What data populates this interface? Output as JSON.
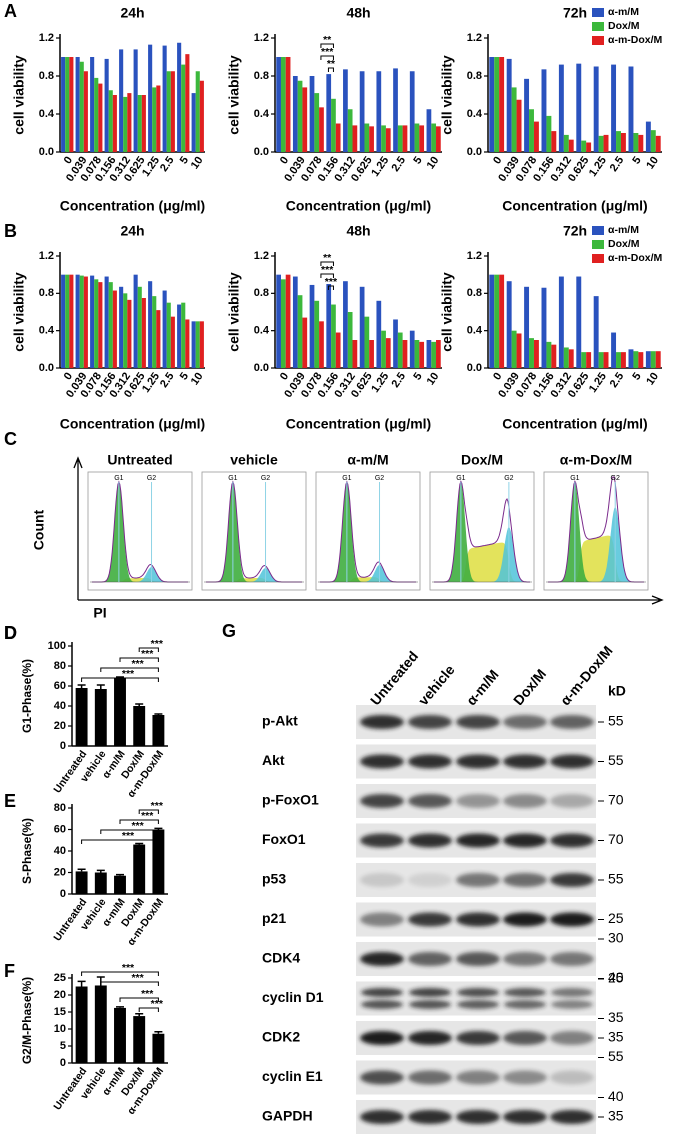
{
  "chart_data": [
    {
      "type": "bar",
      "panel": "A",
      "title": "24h",
      "ylabel": "cell viability",
      "xlabel": "Concentration (μg/ml)",
      "categories": [
        "0",
        "0.039",
        "0.078",
        "0.156",
        "0.312",
        "0.625",
        "1.25",
        "2.5",
        "5",
        "10"
      ],
      "series": [
        {
          "color": "#2a52be",
          "values": [
            1.0,
            1.0,
            1.0,
            0.98,
            1.08,
            1.08,
            1.13,
            1.12,
            1.15,
            0.62
          ]
        },
        {
          "color": "#3cb83c",
          "values": [
            1.0,
            0.95,
            0.78,
            0.65,
            0.58,
            0.6,
            0.68,
            0.85,
            0.92,
            0.85
          ]
        },
        {
          "color": "#e02020",
          "values": [
            1.0,
            0.85,
            0.72,
            0.6,
            0.62,
            0.6,
            0.7,
            0.85,
            1.03,
            0.75
          ]
        }
      ],
      "ylim": [
        0,
        1.2
      ],
      "yticks": [
        {
          "value": 0,
          "label": "0.0"
        },
        0.4,
        0.8,
        1.2
      ]
    },
    {
      "type": "bar",
      "title": "48h",
      "ylabel": "cell viability",
      "xlabel": "Concentration (μg/ml)",
      "categories": [
        "0",
        "0.039",
        "0.078",
        "0.156",
        "0.312",
        "0.625",
        "1.25",
        "2.5",
        "5",
        "10"
      ],
      "series": [
        {
          "color": "#2a52be",
          "values": [
            1.0,
            0.8,
            0.8,
            0.82,
            0.87,
            0.85,
            0.85,
            0.88,
            0.85,
            0.45
          ]
        },
        {
          "color": "#3cb83c",
          "values": [
            1.0,
            0.75,
            0.62,
            0.56,
            0.45,
            0.3,
            0.28,
            0.28,
            0.3,
            0.3
          ]
        },
        {
          "color": "#e02020",
          "values": [
            1.0,
            0.68,
            0.47,
            0.3,
            0.28,
            0.27,
            0.25,
            0.28,
            0.28,
            0.27
          ]
        }
      ],
      "ylim": [
        0,
        1.2
      ],
      "yticks": [
        {
          "value": 0,
          "label": "0.0"
        },
        0.4,
        0.8,
        1.2
      ],
      "annotations": [
        "**",
        "***",
        "**"
      ]
    },
    {
      "type": "bar",
      "title": "72h",
      "ylabel": "cell viability",
      "xlabel": "Concentration (μg/ml)",
      "categories": [
        "0",
        "0.039",
        "0.078",
        "0.156",
        "0.312",
        "0.625",
        "1.25",
        "2.5",
        "5",
        "10"
      ],
      "series": [
        {
          "name": "α-m/M",
          "color": "#2a52be",
          "values": [
            1.0,
            0.98,
            0.77,
            0.87,
            0.92,
            0.93,
            0.9,
            0.92,
            0.9,
            0.32
          ]
        },
        {
          "name": "Dox/M",
          "color": "#3cb83c",
          "values": [
            1.0,
            0.68,
            0.45,
            0.38,
            0.18,
            0.12,
            0.17,
            0.22,
            0.2,
            0.23
          ]
        },
        {
          "name": "α-m-Dox/M",
          "color": "#e02020",
          "values": [
            1.0,
            0.55,
            0.32,
            0.22,
            0.13,
            0.1,
            0.18,
            0.2,
            0.18,
            0.17
          ]
        }
      ],
      "ylim": [
        0,
        1.2
      ],
      "yticks": [
        {
          "value": 0,
          "label": "0.0"
        },
        0.4,
        0.8,
        1.2
      ],
      "legend": "top-right"
    },
    {
      "type": "bar",
      "panel": "B",
      "title": "24h",
      "ylabel": "cell viability",
      "xlabel": "Concentration (μg/ml)",
      "categories": [
        "0",
        "0.039",
        "0.078",
        "0.156",
        "0.312",
        "0.625",
        "1.25",
        "2.5",
        "5",
        "10"
      ],
      "series": [
        {
          "color": "#2a52be",
          "values": [
            1.0,
            1.0,
            0.99,
            0.98,
            0.87,
            1.0,
            0.93,
            0.83,
            0.68,
            0.5
          ]
        },
        {
          "color": "#3cb83c",
          "values": [
            1.0,
            0.99,
            0.95,
            0.92,
            0.8,
            0.87,
            0.77,
            0.7,
            0.7,
            0.5
          ]
        },
        {
          "color": "#e02020",
          "values": [
            1.0,
            0.98,
            0.92,
            0.83,
            0.73,
            0.75,
            0.62,
            0.55,
            0.52,
            0.5
          ]
        }
      ],
      "ylim": [
        0,
        1.2
      ],
      "yticks": [
        {
          "value": 0,
          "label": "0.0"
        },
        0.4,
        0.8,
        1.2
      ]
    },
    {
      "type": "bar",
      "title": "48h",
      "ylabel": "cell viability",
      "xlabel": "Concentration (μg/ml)",
      "categories": [
        "0",
        "0.039",
        "0.078",
        "0.156",
        "0.312",
        "0.625",
        "1.25",
        "2.5",
        "5",
        "10"
      ],
      "series": [
        {
          "color": "#2a52be",
          "values": [
            1.0,
            0.98,
            0.89,
            0.9,
            0.93,
            0.87,
            0.72,
            0.52,
            0.4,
            0.3
          ]
        },
        {
          "color": "#3cb83c",
          "values": [
            0.95,
            0.78,
            0.72,
            0.68,
            0.6,
            0.55,
            0.4,
            0.38,
            0.3,
            0.28
          ]
        },
        {
          "color": "#e02020",
          "values": [
            1.0,
            0.54,
            0.5,
            0.38,
            0.3,
            0.3,
            0.32,
            0.3,
            0.28,
            0.3
          ]
        }
      ],
      "ylim": [
        0,
        1.2
      ],
      "yticks": [
        {
          "value": 0,
          "label": "0.0"
        },
        0.4,
        0.8,
        1.2
      ],
      "annotations": [
        "**",
        "***",
        "***"
      ]
    },
    {
      "type": "bar",
      "title": "72h",
      "ylabel": "cell viability",
      "xlabel": "Concentration (μg/ml)",
      "categories": [
        "0",
        "0.039",
        "0.078",
        "0.156",
        "0.312",
        "0.625",
        "1.25",
        "2.5",
        "5",
        "10"
      ],
      "series": [
        {
          "name": "α-m/M",
          "color": "#2a52be",
          "values": [
            1.0,
            0.93,
            0.87,
            0.86,
            0.98,
            0.98,
            0.77,
            0.38,
            0.2,
            0.18
          ]
        },
        {
          "name": "Dox/M",
          "color": "#3cb83c",
          "values": [
            1.0,
            0.4,
            0.32,
            0.28,
            0.22,
            0.17,
            0.17,
            0.17,
            0.18,
            0.18
          ]
        },
        {
          "name": "α-m-Dox/M",
          "color": "#e02020",
          "values": [
            1.0,
            0.37,
            0.3,
            0.25,
            0.2,
            0.17,
            0.17,
            0.17,
            0.17,
            0.18
          ]
        }
      ],
      "ylim": [
        0,
        1.2
      ],
      "yticks": [
        {
          "value": 0,
          "label": "0.0"
        },
        0.4,
        0.8,
        1.2
      ],
      "legend": "top-right"
    },
    {
      "type": "bar",
      "panel": "D",
      "ylabel": "G1-Phase(%)",
      "categories": [
        "Untreated",
        "vehicle",
        "α-m/M",
        "Dox/M",
        "α-m-Dox/M"
      ],
      "series": [
        {
          "color": "#000000",
          "values": [
            58,
            57,
            68,
            40,
            31
          ],
          "errors": [
            3,
            4,
            1,
            2,
            1
          ]
        }
      ],
      "ylim": [
        0,
        100
      ],
      "yticks": [
        0,
        20,
        40,
        60,
        80,
        100
      ],
      "annotations": [
        "***",
        "***",
        "***",
        "***"
      ]
    },
    {
      "type": "bar",
      "panel": "E",
      "ylabel": "S-Phase(%)",
      "categories": [
        "Untreated",
        "vehicle",
        "α-m/M",
        "Dox/M",
        "α-m-Dox/M"
      ],
      "series": [
        {
          "color": "#000000",
          "values": [
            21,
            20,
            17,
            46,
            60
          ],
          "errors": [
            2,
            2,
            1,
            1,
            1
          ]
        }
      ],
      "ylim": [
        0,
        80
      ],
      "yticks": [
        0,
        20,
        40,
        60,
        80
      ],
      "annotations": [
        "***",
        "***",
        "***",
        "***"
      ]
    },
    {
      "type": "bar",
      "panel": "F",
      "ylabel": "G2/M-Phase(%)",
      "categories": [
        "Untreated",
        "vehicle",
        "α-m/M",
        "Dox/M",
        "α-m-Dox/M"
      ],
      "series": [
        {
          "color": "#000000",
          "values": [
            22.5,
            22.8,
            16.2,
            13.8,
            8.6
          ],
          "errors": [
            1.5,
            2.5,
            0.3,
            0.7,
            0.6
          ]
        }
      ],
      "ylim": [
        0,
        25
      ],
      "yticks": [
        0,
        5,
        10,
        15,
        20,
        25
      ],
      "annotations": [
        "***",
        "***",
        "***",
        "***"
      ]
    }
  ],
  "flow": {
    "panel": "C",
    "titles": [
      "Untreated",
      "vehicle",
      "α-m/M",
      "Dox/M",
      "α-m-Dox/M"
    ],
    "peak_labels": [
      "G1",
      "G2"
    ],
    "ylabel": "Count",
    "xlabel": "PI"
  },
  "blot": {
    "panel": "G",
    "columns": [
      "Untreated",
      "vehicle",
      "α-m/M",
      "Dox/M",
      "α-m-Dox/M"
    ],
    "unit": "kD",
    "rows": [
      {
        "label": "p-Akt",
        "markers": [
          "55"
        ]
      },
      {
        "label": "Akt",
        "markers": [
          "55"
        ]
      },
      {
        "label": "p-FoxO1",
        "markers": [
          "70"
        ]
      },
      {
        "label": "FoxO1",
        "markers": [
          "70"
        ]
      },
      {
        "label": "p53",
        "markers": [
          "55"
        ]
      },
      {
        "label": "p21",
        "markers": [
          "25"
        ]
      },
      {
        "label": "CDK4",
        "markers": [
          "30",
          "25"
        ]
      },
      {
        "label": "cyclin D1",
        "markers": [
          "40",
          "35"
        ]
      },
      {
        "label": "CDK2",
        "markers": [
          "35"
        ]
      },
      {
        "label": "cyclin E1",
        "markers": [
          "55",
          "40"
        ]
      },
      {
        "label": "GAPDH",
        "markers": [
          "35"
        ]
      }
    ]
  }
}
